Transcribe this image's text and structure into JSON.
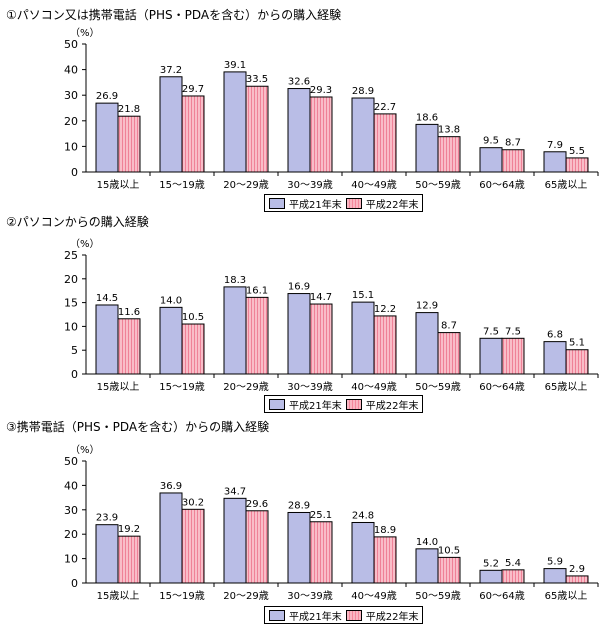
{
  "colors": {
    "series1": "#b9bde6",
    "series2": "#f4a3b3",
    "series2_stripe": "#ef8197",
    "axis": "#000000"
  },
  "legend": {
    "series1": "平成21年末",
    "series2": "平成22年末"
  },
  "chart_data": [
    {
      "type": "bar",
      "title": "①パソコン又は携帯電話（PHS・PDAを含む）からの購入経験",
      "ylabel": "（%）",
      "ylim": [
        0,
        50
      ],
      "yticks": [
        "0",
        "10",
        "20",
        "30",
        "40",
        "50"
      ],
      "categories": [
        "15歳以上",
        "15～19歳",
        "20～29歳",
        "30～39歳",
        "40～49歳",
        "50～59歳",
        "60～64歳",
        "65歳以上"
      ],
      "series": [
        {
          "name": "平成21年末",
          "values": [
            26.9,
            37.2,
            39.1,
            32.6,
            28.9,
            18.6,
            9.5,
            7.9
          ],
          "labels": [
            "26.9",
            "37.2",
            "39.1",
            "32.6",
            "28.9",
            "18.6",
            "9.5",
            "7.9"
          ]
        },
        {
          "name": "平成22年末",
          "values": [
            21.8,
            29.7,
            33.5,
            29.3,
            22.7,
            13.8,
            8.7,
            5.5
          ],
          "labels": [
            "21.8",
            "29.7",
            "33.5",
            "29.3",
            "22.7",
            "13.8",
            "8.7",
            "5.5"
          ]
        }
      ],
      "grid": false,
      "legend_position": "bottom-center"
    },
    {
      "type": "bar",
      "title": "②パソコンからの購入経験",
      "ylabel": "（%）",
      "ylim": [
        0,
        25
      ],
      "yticks": [
        "0",
        "5",
        "10",
        "15",
        "20",
        "25"
      ],
      "categories": [
        "15歳以上",
        "15～19歳",
        "20～29歳",
        "30～39歳",
        "40～49歳",
        "50～59歳",
        "60～64歳",
        "65歳以上"
      ],
      "series": [
        {
          "name": "平成21年末",
          "values": [
            14.5,
            14.0,
            18.3,
            16.9,
            15.1,
            12.9,
            7.5,
            6.8
          ],
          "labels": [
            "14.5",
            "14.0",
            "18.3",
            "16.9",
            "15.1",
            "12.9",
            "7.5",
            "6.8"
          ]
        },
        {
          "name": "平成22年末",
          "values": [
            11.6,
            10.5,
            16.1,
            14.7,
            12.2,
            8.7,
            7.5,
            5.1
          ],
          "labels": [
            "11.6",
            "10.5",
            "16.1",
            "14.7",
            "12.2",
            "8.7",
            "7.5",
            "5.1"
          ]
        }
      ],
      "grid": false,
      "legend_position": "bottom-center"
    },
    {
      "type": "bar",
      "title": "③携帯電話（PHS・PDAを含む）からの購入経験",
      "ylabel": "（%）",
      "ylim": [
        0,
        50
      ],
      "yticks": [
        "0",
        "10",
        "20",
        "30",
        "40",
        "50"
      ],
      "categories": [
        "15歳以上",
        "15～19歳",
        "20～29歳",
        "30～39歳",
        "40～49歳",
        "50～59歳",
        "60～64歳",
        "65歳以上"
      ],
      "series": [
        {
          "name": "平成21年末",
          "values": [
            23.9,
            36.9,
            34.7,
            28.9,
            24.8,
            14.0,
            5.2,
            5.9
          ],
          "labels": [
            "23.9",
            "36.9",
            "34.7",
            "28.9",
            "24.8",
            "14.0",
            "5.2",
            "5.9"
          ]
        },
        {
          "name": "平成22年末",
          "values": [
            19.2,
            30.2,
            29.6,
            25.1,
            18.9,
            10.5,
            5.4,
            2.9
          ],
          "labels": [
            "19.2",
            "30.2",
            "29.6",
            "25.1",
            "18.9",
            "10.5",
            "5.4",
            "2.9"
          ]
        }
      ],
      "grid": false,
      "legend_position": "bottom-center"
    }
  ]
}
